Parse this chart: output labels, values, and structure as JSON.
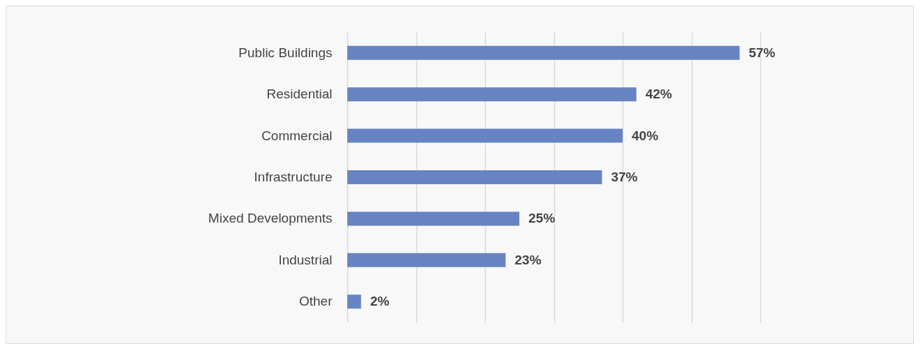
{
  "chart_data": {
    "type": "bar",
    "orientation": "horizontal",
    "categories": [
      "Public Buildings",
      "Residential",
      "Commercial",
      "Infrastructure",
      "Mixed Developments",
      "Industrial",
      "Other"
    ],
    "values": [
      57,
      42,
      40,
      37,
      25,
      23,
      2
    ],
    "color": "#6783c2",
    "data_labels": true,
    "value_labels": [
      "57%",
      "42%",
      "40%",
      "37%",
      "25%",
      "23%",
      "2%"
    ],
    "xlim": [
      0,
      60
    ],
    "xticks": [
      {
        "value": 0,
        "label": null
      },
      {
        "value": 10,
        "label": null
      },
      {
        "value": 20,
        "label": null
      },
      {
        "value": 30,
        "label": null
      },
      {
        "value": 40,
        "label": null
      },
      {
        "value": 50,
        "label": null
      },
      {
        "value": 60,
        "label": null
      }
    ],
    "grid": "x",
    "tick_labels": "y"
  }
}
